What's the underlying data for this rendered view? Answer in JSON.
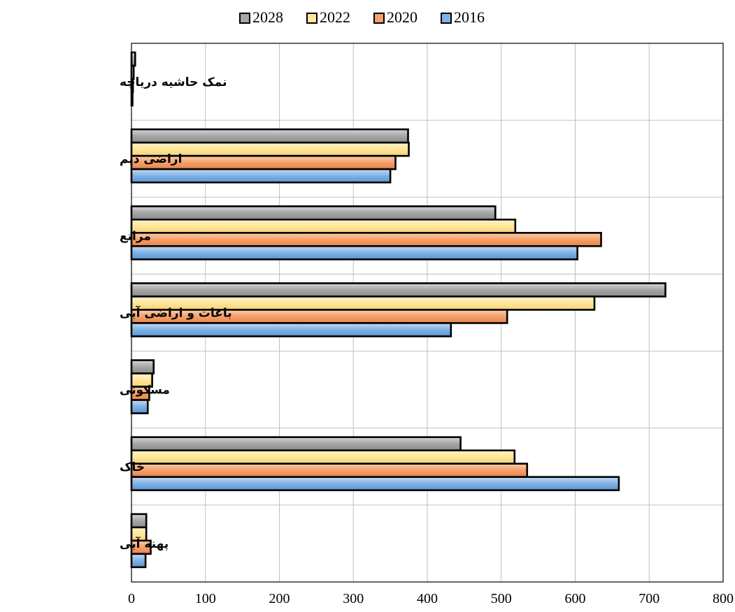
{
  "chart_data": {
    "type": "bar",
    "orientation": "horizontal",
    "title": "",
    "xlabel": "",
    "ylabel": "",
    "xlim": [
      0,
      800
    ],
    "xticks": [
      0,
      100,
      200,
      300,
      400,
      500,
      600,
      700,
      800
    ],
    "grid": true,
    "legend_position": "top",
    "categories": [
      "نمک حاشیه دریاچه",
      "اراضی دیم",
      "مراتع",
      "باغات و اراضی آبی",
      "مسکونی",
      "خاک",
      "پهنه آبی"
    ],
    "series": [
      {
        "name": "2028",
        "color": "#a6a6a6",
        "values": [
          5,
          374,
          492,
          722,
          30,
          445,
          20
        ]
      },
      {
        "name": "2022",
        "color": "#ffe699",
        "values": [
          3,
          375,
          519,
          626,
          28,
          518,
          20
        ]
      },
      {
        "name": "2020",
        "color": "#f4a06a",
        "values": [
          2,
          357,
          635,
          508,
          24,
          535,
          26
        ]
      },
      {
        "name": "2016",
        "color": "#7fb2e5",
        "values": [
          1,
          350,
          603,
          432,
          22,
          659,
          19
        ]
      }
    ]
  }
}
